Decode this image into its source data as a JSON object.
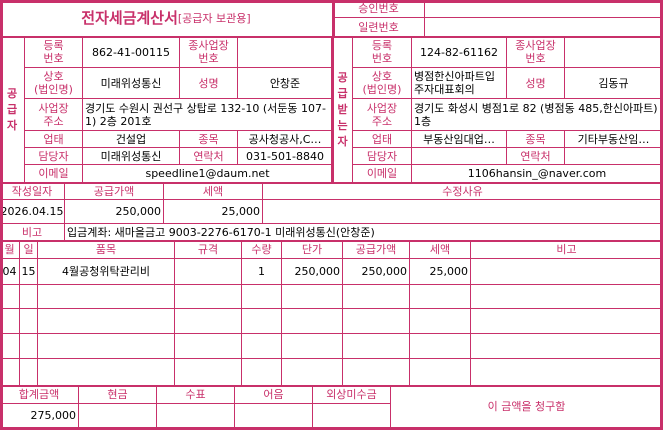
{
  "title": {
    "main": "전자세금계산서",
    "sub": "[공급자 보관용]"
  },
  "approval": {
    "approval_no_label": "승인번호",
    "approval_no": "",
    "serial_no_label": "일련번호",
    "serial_no": ""
  },
  "supplier": {
    "side_label": "공\n급\n자",
    "reg_no_label": "등록\n번호",
    "reg_no": "862-41-00115",
    "sub_biz_label": "종사업장\n번호",
    "sub_biz": "",
    "company_label": "상호\n(법인명)",
    "company": "미래위성통신",
    "name_label": "성명",
    "name": "안창준",
    "address_label": "사업장\n주소",
    "address": "경기도 수원시 권선구 상탑로 132-10 (서둔동 107-1) 2층 201호",
    "biz_type_label": "업태",
    "biz_type": "건설업",
    "item_label": "종목",
    "item": "공사청공사,C…",
    "contact_label": "담당자",
    "contact": "미래위성통신",
    "phone_label": "연락처",
    "phone": "031-501-8840",
    "email_label": "이메일",
    "email": "speedline1@daum.net"
  },
  "receiver": {
    "side_label": "공\n급\n받\n는\n자",
    "reg_no_label": "등록\n번호",
    "reg_no": "124-82-61162",
    "sub_biz_label": "종사업장\n번호",
    "sub_biz": "",
    "company_label": "상호\n(법인명)",
    "company": "병점한신아파트입주자대표회의",
    "name_label": "성명",
    "name": "김동규",
    "address_label": "사업장\n주소",
    "address": "경기도 화성시 병점1로 82 (병점동 485,한신아파트) 1층",
    "biz_type_label": "업태",
    "biz_type": "부동산임대업…",
    "item_label": "종목",
    "item": "기타부동산임…",
    "contact_label": "담당자",
    "contact": "",
    "phone_label": "연락처",
    "phone": "",
    "email_label": "이메일",
    "email": "1106hansin_@naver.com"
  },
  "summary": {
    "date_label": "작성일자",
    "date": "2026.04.15",
    "supply_label": "공급가액",
    "supply": "250,000",
    "tax_label": "세액",
    "tax": "25,000",
    "reason_label": "수정사유",
    "reason": "",
    "note_label": "비고",
    "note": "입금계좌: 새마을금고 9003-2276-6170-1 미래위성통신(안창준)"
  },
  "items": {
    "headers": [
      "월",
      "일",
      "품목",
      "규격",
      "수량",
      "단가",
      "공급가액",
      "세액",
      "비고"
    ],
    "rows": [
      [
        "04",
        "15",
        "4월공청위탁관리비",
        "",
        "1",
        "250,000",
        "250,000",
        "25,000",
        ""
      ],
      [
        "",
        "",
        "",
        "",
        "",
        "",
        "",
        "",
        ""
      ],
      [
        "",
        "",
        "",
        "",
        "",
        "",
        "",
        "",
        ""
      ],
      [
        "",
        "",
        "",
        "",
        "",
        "",
        "",
        "",
        ""
      ],
      [
        "",
        "",
        "",
        "",
        "",
        "",
        "",
        "",
        ""
      ]
    ]
  },
  "totals": {
    "headers": [
      "합계금액",
      "현금",
      "수표",
      "어음",
      "외상미수금"
    ],
    "values": [
      "275,000",
      "",
      "",
      "",
      ""
    ],
    "claim_text": "이 금액을 청구함"
  },
  "colors": {
    "accent": "#c8306a"
  }
}
